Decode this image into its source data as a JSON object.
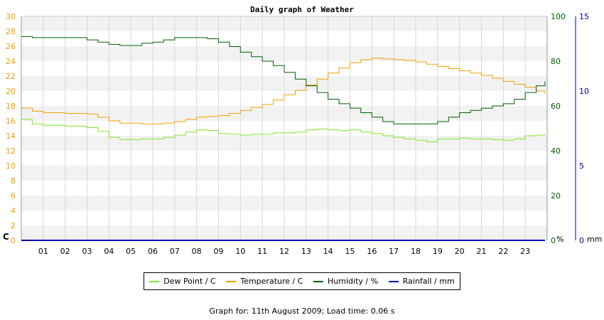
{
  "colors": {
    "dew_point": "#7ee629",
    "temperature": "#f0a000",
    "humidity": "#005e00",
    "rainfall": "#0000b3",
    "left_axis": "#f0a000",
    "humidity_axis": "#005e00",
    "rain_axis": "#0000b3",
    "band": "#f2f2f2",
    "grid": "#d8d8d8"
  },
  "footer": {
    "text": "Graph for: 11th August 2009; Load time: 0.06 s"
  },
  "chart_data": {
    "type": "line",
    "title": "Daily graph of Weather",
    "xlim": [
      0,
      24
    ],
    "x_ticks": [
      "01",
      "02",
      "03",
      "04",
      "05",
      "06",
      "07",
      "08",
      "09",
      "10",
      "11",
      "12",
      "13",
      "14",
      "15",
      "16",
      "17",
      "18",
      "19",
      "20",
      "21",
      "22",
      "23"
    ],
    "grid": true,
    "legend_position": "bottom",
    "axes": {
      "temperature": {
        "unit_label": "C",
        "range": [
          0,
          30
        ],
        "ticks": [
          "0",
          "2",
          "4",
          "6",
          "8",
          "10",
          "12",
          "14",
          "16",
          "18",
          "20",
          "22",
          "24",
          "26",
          "28",
          "30"
        ]
      },
      "humidity": {
        "unit_label": "%",
        "range": [
          0,
          100
        ],
        "ticks": [
          "0",
          "20",
          "40",
          "60",
          "80",
          "100"
        ]
      },
      "rainfall": {
        "unit_label": "mm",
        "range": [
          0,
          15
        ],
        "ticks": [
          "0",
          "5",
          "10",
          "15"
        ]
      }
    },
    "x": [
      0,
      0.5,
      1,
      1.5,
      2,
      2.5,
      3,
      3.5,
      4,
      4.5,
      5,
      5.5,
      6,
      6.5,
      7,
      7.5,
      8,
      8.5,
      9,
      9.5,
      10,
      10.5,
      11,
      11.5,
      12,
      12.5,
      13,
      13.5,
      14,
      14.5,
      15,
      15.5,
      16,
      16.5,
      17,
      17.5,
      18,
      18.5,
      19,
      19.5,
      20,
      20.5,
      21,
      21.5,
      22,
      22.5,
      23,
      23.5,
      23.9
    ],
    "series": [
      {
        "name": "Dew Point / C",
        "axis": "temperature",
        "values": [
          16.2,
          15.6,
          15.4,
          15.4,
          15.3,
          15.3,
          15.1,
          14.6,
          13.8,
          13.5,
          13.5,
          13.6,
          13.6,
          13.8,
          14.1,
          14.5,
          14.8,
          14.7,
          14.3,
          14.2,
          14.1,
          14.2,
          14.2,
          14.4,
          14.4,
          14.5,
          14.8,
          14.9,
          14.8,
          14.7,
          14.8,
          14.5,
          14.3,
          14.0,
          13.8,
          13.6,
          13.4,
          13.2,
          13.6,
          13.6,
          13.7,
          13.6,
          13.6,
          13.5,
          13.4,
          13.6,
          14.0,
          14.1,
          14.2
        ]
      },
      {
        "name": "Temperature / C",
        "axis": "temperature",
        "values": [
          17.7,
          17.3,
          17.1,
          17.1,
          17.0,
          17.0,
          16.9,
          16.5,
          16.0,
          15.7,
          15.7,
          15.6,
          15.6,
          15.7,
          15.9,
          16.2,
          16.5,
          16.6,
          16.7,
          17.0,
          17.4,
          17.8,
          18.2,
          18.8,
          19.5,
          20.1,
          20.8,
          21.6,
          22.4,
          23.1,
          23.8,
          24.2,
          24.4,
          24.3,
          24.2,
          24.1,
          23.9,
          23.6,
          23.3,
          23.0,
          22.7,
          22.4,
          22.1,
          21.7,
          21.3,
          20.9,
          20.5,
          20.0,
          19.6
        ]
      },
      {
        "name": "Humidity / %",
        "axis": "humidity",
        "values": [
          91,
          90.5,
          90.5,
          90.5,
          90.5,
          90.5,
          89.5,
          88.5,
          87.5,
          87,
          87,
          88,
          88.5,
          89.5,
          90.5,
          90.5,
          90.5,
          90,
          88.5,
          86.5,
          84,
          82,
          80,
          78,
          75,
          72,
          69,
          66,
          63,
          61,
          59,
          57,
          55,
          53,
          52,
          52,
          52,
          52,
          53,
          55,
          57,
          58,
          59,
          60,
          61,
          63,
          66,
          69,
          71
        ]
      },
      {
        "name": "Rainfall / mm",
        "axis": "rainfall",
        "values": [
          0,
          0,
          0,
          0,
          0,
          0,
          0,
          0,
          0,
          0,
          0,
          0,
          0,
          0,
          0,
          0,
          0,
          0,
          0,
          0,
          0,
          0,
          0,
          0,
          0,
          0,
          0,
          0,
          0,
          0,
          0,
          0,
          0,
          0,
          0,
          0,
          0,
          0,
          0,
          0,
          0,
          0,
          0,
          0,
          0,
          0,
          0,
          0,
          0
        ]
      }
    ]
  }
}
